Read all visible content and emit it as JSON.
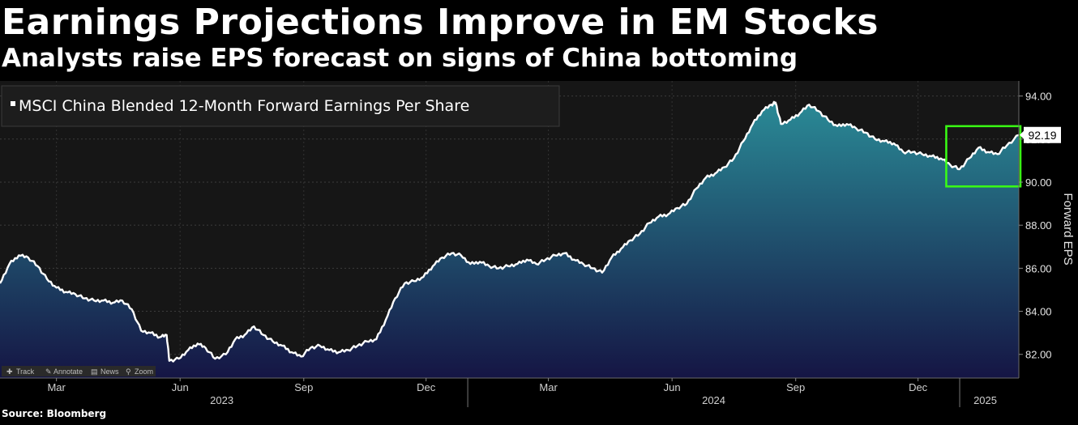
{
  "title": "Earnings Projections Improve in EM Stocks",
  "subtitle": "Analysts raise EPS forecast on signs of China bottoming",
  "source": "Source: Bloomberg",
  "toolbar": {
    "track": "Track",
    "annotate": "Annotate",
    "news": "News",
    "zoom": "Zoom"
  },
  "colors": {
    "line": "#ffffff",
    "area_top": "#2a8a96",
    "area_bottom": "#151544",
    "plot_bg": "#161616",
    "highlight_box": "#39ff14",
    "last_value_box": "#ffffff"
  },
  "chart_data": {
    "type": "area",
    "title": "",
    "ylabel": "Forward EPS",
    "legend": [
      "MSCI China Blended 12-Month Forward Earnings Per Share"
    ],
    "legend_position": "top-left",
    "grid": true,
    "ylim": [
      80.9,
      94.7
    ],
    "y_ticks": [
      "94.00",
      "92.00",
      "90.00",
      "88.00",
      "86.00",
      "84.00",
      "82.00"
    ],
    "y_tick_values": [
      94,
      92,
      90,
      88,
      86,
      84,
      82
    ],
    "x_range": [
      "2023-01-18",
      "2025-02-14"
    ],
    "month_ticks": [
      {
        "label": "Mar",
        "date": "2023-03-01"
      },
      {
        "label": "Jun",
        "date": "2023-06-01"
      },
      {
        "label": "Sep",
        "date": "2023-09-01"
      },
      {
        "label": "Dec",
        "date": "2023-12-01"
      },
      {
        "label": "Mar",
        "date": "2024-03-01"
      },
      {
        "label": "Jun",
        "date": "2024-06-01"
      },
      {
        "label": "Sep",
        "date": "2024-09-01"
      },
      {
        "label": "Dec",
        "date": "2024-12-01"
      }
    ],
    "year_labels": [
      {
        "label": "2023",
        "center": "2023-07-02"
      },
      {
        "label": "2024",
        "center": "2024-07-02"
      },
      {
        "label": "2025",
        "center": "2025-01-20"
      }
    ],
    "year_separators": [
      "2024-01-01",
      "2025-01-01"
    ],
    "last_value": "92.19",
    "highlight": {
      "from": "2024-12-22",
      "to": "2025-02-14",
      "y_from": 89.8,
      "y_to": 92.6
    },
    "series": [
      {
        "name": "MSCI China Blended 12-Month Forward Earnings Per Share",
        "points": [
          [
            "2023-01-18",
            85.3
          ],
          [
            "2023-01-25",
            86.2
          ],
          [
            "2023-02-01",
            86.6
          ],
          [
            "2023-02-08",
            86.5
          ],
          [
            "2023-02-15",
            86.1
          ],
          [
            "2023-02-22",
            85.5
          ],
          [
            "2023-03-01",
            85.1
          ],
          [
            "2023-03-08",
            84.9
          ],
          [
            "2023-03-15",
            84.8
          ],
          [
            "2023-03-22",
            84.6
          ],
          [
            "2023-03-29",
            84.5
          ],
          [
            "2023-04-05",
            84.5
          ],
          [
            "2023-04-12",
            84.4
          ],
          [
            "2023-04-19",
            84.5
          ],
          [
            "2023-04-26",
            84.1
          ],
          [
            "2023-05-03",
            83.1
          ],
          [
            "2023-05-10",
            83.0
          ],
          [
            "2023-05-17",
            82.8
          ],
          [
            "2023-05-22",
            82.9
          ],
          [
            "2023-05-24",
            81.7
          ],
          [
            "2023-05-31",
            81.8
          ],
          [
            "2023-06-07",
            82.2
          ],
          [
            "2023-06-14",
            82.5
          ],
          [
            "2023-06-20",
            82.3
          ],
          [
            "2023-06-27",
            81.8
          ],
          [
            "2023-07-05",
            82.0
          ],
          [
            "2023-07-12",
            82.7
          ],
          [
            "2023-07-19",
            82.9
          ],
          [
            "2023-07-26",
            83.3
          ],
          [
            "2023-08-02",
            82.9
          ],
          [
            "2023-08-09",
            82.6
          ],
          [
            "2023-08-16",
            82.4
          ],
          [
            "2023-08-23",
            82.1
          ],
          [
            "2023-08-30",
            81.9
          ],
          [
            "2023-09-06",
            82.3
          ],
          [
            "2023-09-13",
            82.4
          ],
          [
            "2023-09-20",
            82.2
          ],
          [
            "2023-09-27",
            82.1
          ],
          [
            "2023-10-04",
            82.2
          ],
          [
            "2023-10-11",
            82.4
          ],
          [
            "2023-10-18",
            82.6
          ],
          [
            "2023-10-25",
            82.7
          ],
          [
            "2023-11-01",
            83.6
          ],
          [
            "2023-11-08",
            84.6
          ],
          [
            "2023-11-15",
            85.3
          ],
          [
            "2023-11-22",
            85.4
          ],
          [
            "2023-11-29",
            85.6
          ],
          [
            "2023-12-06",
            86.1
          ],
          [
            "2023-12-13",
            86.5
          ],
          [
            "2023-12-20",
            86.7
          ],
          [
            "2023-12-27",
            86.6
          ],
          [
            "2024-01-03",
            86.2
          ],
          [
            "2024-01-10",
            86.3
          ],
          [
            "2024-01-17",
            86.1
          ],
          [
            "2024-01-24",
            86.0
          ],
          [
            "2024-01-31",
            86.1
          ],
          [
            "2024-02-07",
            86.2
          ],
          [
            "2024-02-14",
            86.4
          ],
          [
            "2024-02-21",
            86.2
          ],
          [
            "2024-02-28",
            86.4
          ],
          [
            "2024-03-06",
            86.6
          ],
          [
            "2024-03-13",
            86.7
          ],
          [
            "2024-03-20",
            86.4
          ],
          [
            "2024-03-27",
            86.2
          ],
          [
            "2024-04-03",
            86.0
          ],
          [
            "2024-04-10",
            85.8
          ],
          [
            "2024-04-17",
            86.5
          ],
          [
            "2024-04-24",
            86.9
          ],
          [
            "2024-05-01",
            87.3
          ],
          [
            "2024-05-08",
            87.6
          ],
          [
            "2024-05-15",
            88.1
          ],
          [
            "2024-05-22",
            88.4
          ],
          [
            "2024-05-29",
            88.5
          ],
          [
            "2024-06-05",
            88.8
          ],
          [
            "2024-06-12",
            89.0
          ],
          [
            "2024-06-19",
            89.7
          ],
          [
            "2024-06-26",
            90.2
          ],
          [
            "2024-07-03",
            90.4
          ],
          [
            "2024-07-10",
            90.7
          ],
          [
            "2024-07-17",
            91.1
          ],
          [
            "2024-07-24",
            91.9
          ],
          [
            "2024-07-31",
            92.7
          ],
          [
            "2024-08-07",
            93.3
          ],
          [
            "2024-08-14",
            93.6
          ],
          [
            "2024-08-17",
            93.7
          ],
          [
            "2024-08-21",
            92.7
          ],
          [
            "2024-08-28",
            92.9
          ],
          [
            "2024-09-04",
            93.2
          ],
          [
            "2024-09-11",
            93.6
          ],
          [
            "2024-09-18",
            93.3
          ],
          [
            "2024-09-25",
            92.9
          ],
          [
            "2024-10-02",
            92.6
          ],
          [
            "2024-10-09",
            92.7
          ],
          [
            "2024-10-16",
            92.5
          ],
          [
            "2024-10-23",
            92.3
          ],
          [
            "2024-10-30",
            92.0
          ],
          [
            "2024-11-06",
            91.9
          ],
          [
            "2024-11-13",
            91.8
          ],
          [
            "2024-11-20",
            91.4
          ],
          [
            "2024-11-27",
            91.4
          ],
          [
            "2024-12-04",
            91.3
          ],
          [
            "2024-12-11",
            91.2
          ],
          [
            "2024-12-18",
            91.1
          ],
          [
            "2024-12-25",
            90.8
          ],
          [
            "2025-01-01",
            90.6
          ],
          [
            "2025-01-08",
            91.1
          ],
          [
            "2025-01-15",
            91.6
          ],
          [
            "2025-01-22",
            91.4
          ],
          [
            "2025-01-29",
            91.3
          ],
          [
            "2025-02-05",
            91.7
          ],
          [
            "2025-02-14",
            92.19
          ]
        ]
      }
    ]
  }
}
